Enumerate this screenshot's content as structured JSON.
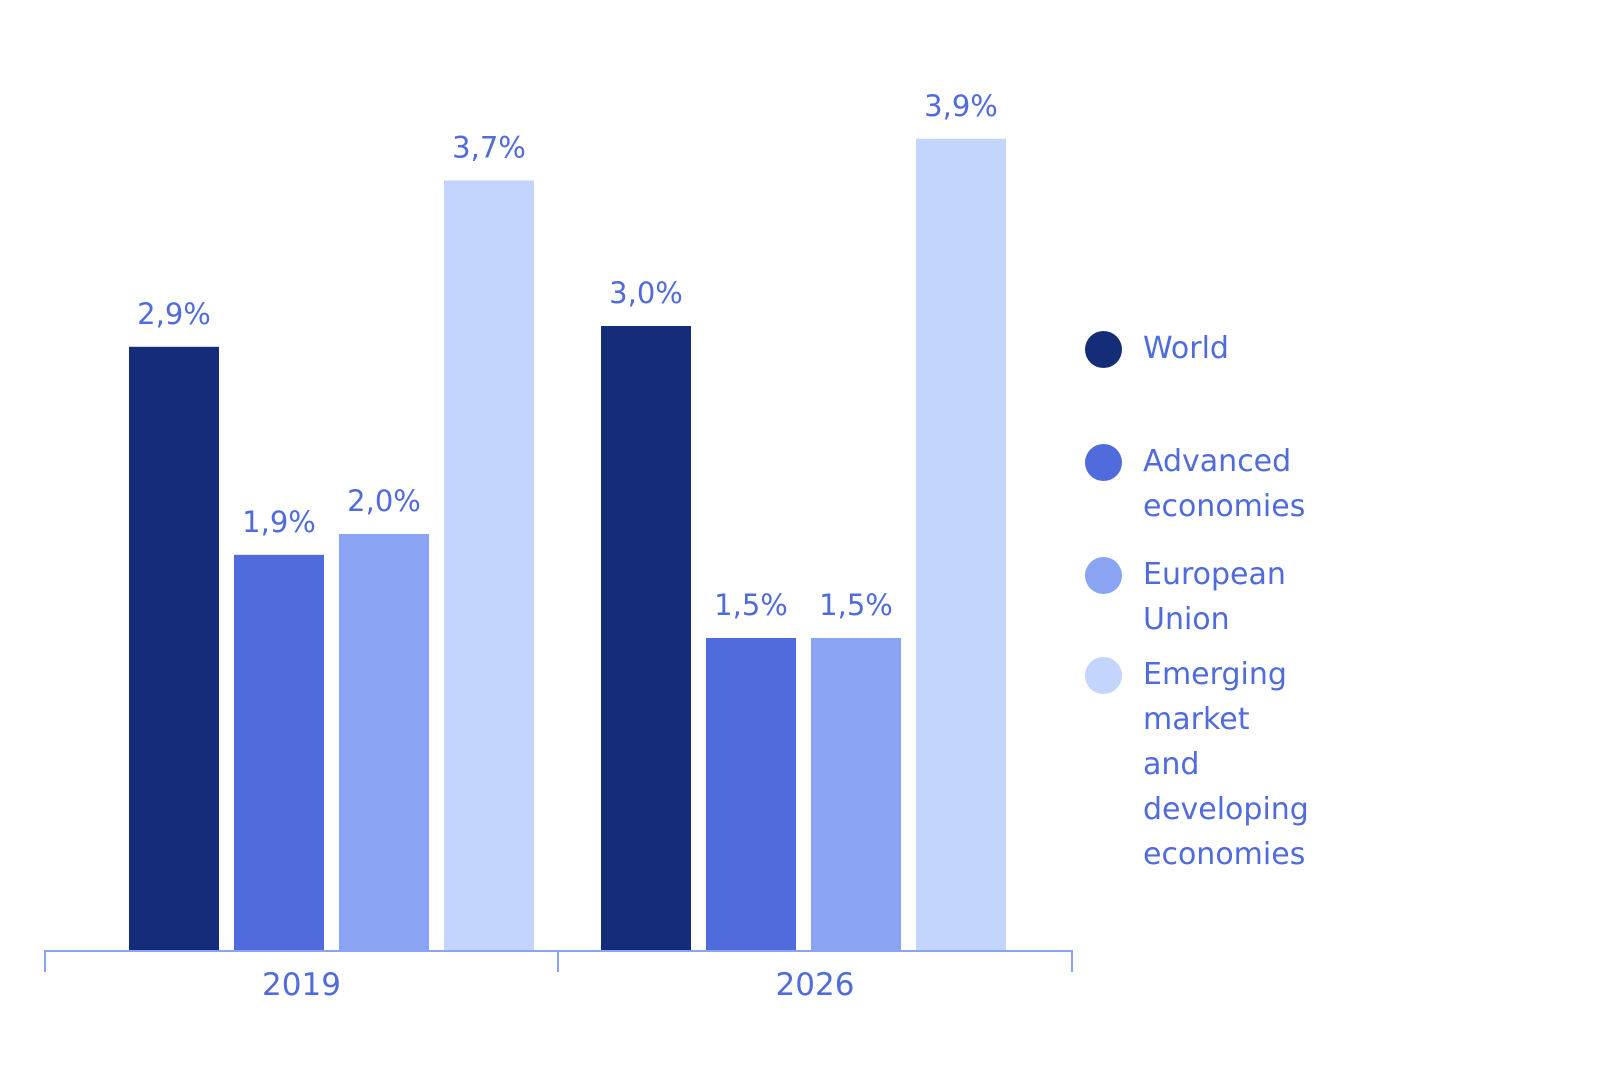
{
  "chart_data": {
    "type": "bar",
    "title": "",
    "xlabel": "",
    "ylabel": "",
    "ylim": [
      0,
      4.5
    ],
    "grid": false,
    "legend_position": "right",
    "categories": [
      "2019",
      "2026"
    ],
    "series": [
      {
        "name": "World",
        "color": "#152c79",
        "values": [
          2.9,
          3.0
        ],
        "labels": [
          "2,9%",
          "3,0%"
        ]
      },
      {
        "name": "Advanced economies",
        "color": "#4f6bdc",
        "values": [
          1.9,
          1.5
        ],
        "labels": [
          "1,9%",
          "1,5%"
        ]
      },
      {
        "name": "European Union",
        "color": "#8aa4f3",
        "values": [
          2.0,
          1.5
        ],
        "labels": [
          "2,0%",
          "1,5%"
        ]
      },
      {
        "name": "Emerging market and developing economies",
        "color": "#c3d4fd",
        "values": [
          3.7,
          3.9
        ],
        "labels": [
          "3,7%",
          "3,9%"
        ]
      }
    ]
  },
  "legend": {
    "items": [
      {
        "label": "World",
        "color": "#152c79"
      },
      {
        "label": "Advanced economies",
        "color": "#4f6bdc"
      },
      {
        "label": "European Union",
        "color": "#8aa4f3"
      },
      {
        "label": "Emerging market and\ndeveloping economies",
        "color": "#c3d4fd"
      }
    ]
  },
  "colors": {
    "text": "#4f6bdc",
    "axis": "#8aa4f3"
  }
}
